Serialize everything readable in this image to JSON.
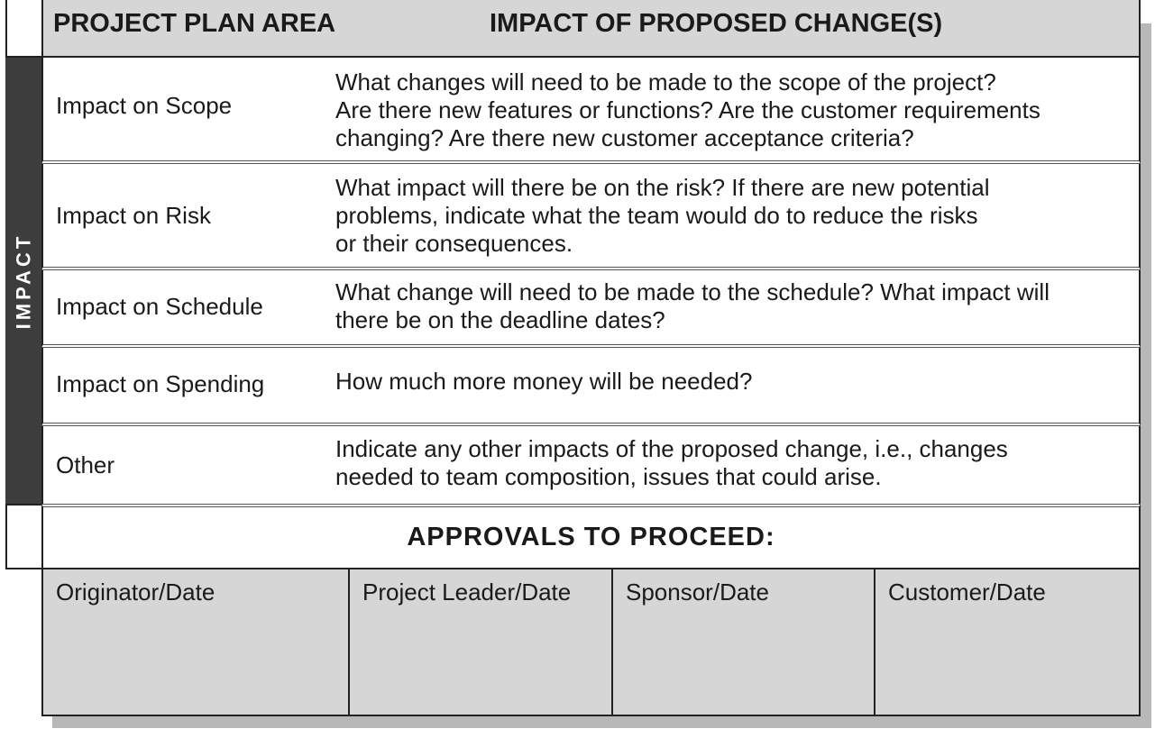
{
  "header": {
    "col1": "PROJECT PLAN AREA",
    "col2": "IMPACT OF PROPOSED CHANGE(S)"
  },
  "rail": {
    "label": "IMPACT"
  },
  "rows": [
    {
      "area": "Impact on Scope",
      "lines": [
        "What changes will need to be made to the scope of the project?",
        "Are there new features or functions? Are the customer requirements",
        "changing? Are there new customer acceptance criteria?"
      ]
    },
    {
      "area": "Impact on Risk",
      "lines": [
        "What impact will there be on the risk? If there are new potential",
        "problems, indicate what the team would do to reduce the risks",
        "or their consequences."
      ]
    },
    {
      "area": "Impact on Schedule",
      "lines": [
        "What change will need to be made to the schedule? What impact will",
        "there be on the deadline dates?"
      ]
    },
    {
      "area": "Impact on Spending",
      "lines": [
        "How much more money will be needed?"
      ]
    },
    {
      "area": "Other",
      "lines": [
        "Indicate any other impacts of the proposed change, i.e., changes",
        "needed to team composition, issues that could arise."
      ]
    }
  ],
  "approvals": {
    "title": "APPROVALS TO PROCEED:",
    "signatures": [
      "Originator/Date",
      "Project Leader/Date",
      "Sponsor/Date",
      "Customer/Date"
    ]
  },
  "colors": {
    "header_fill": "#d6d6d6",
    "rail_fill": "#3d3d3d",
    "border": "#222222"
  }
}
